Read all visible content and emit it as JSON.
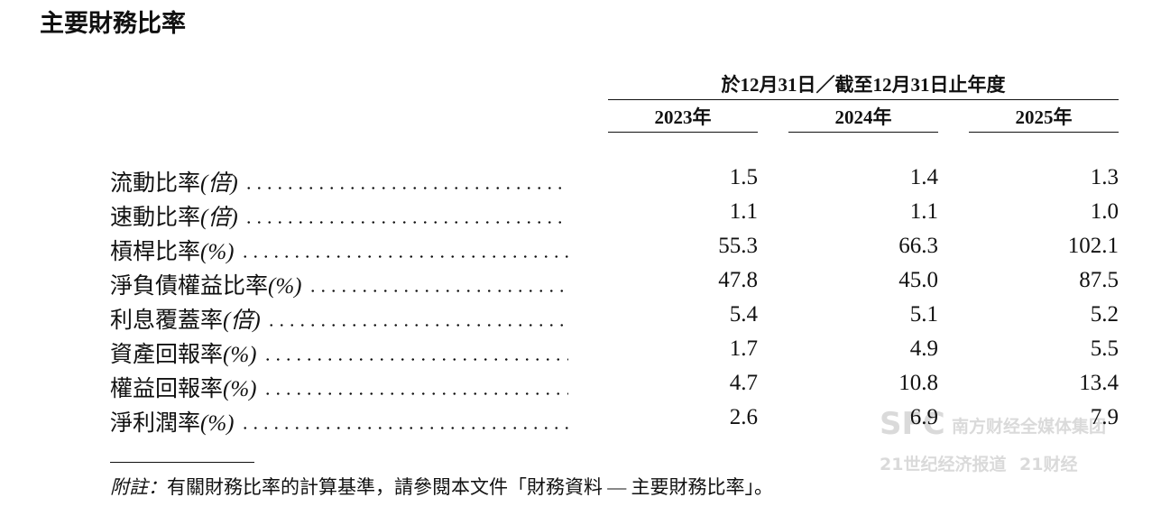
{
  "title": "主要財務比率",
  "header": {
    "period": "於12月31日／截至12月31日止年度",
    "years": [
      "2023年",
      "2024年",
      "2025年"
    ]
  },
  "rows": [
    {
      "name": "流動比率",
      "unit": "(倍)",
      "values": [
        "1.5",
        "1.4",
        "1.3"
      ]
    },
    {
      "name": "速動比率",
      "unit": "(倍)",
      "values": [
        "1.1",
        "1.1",
        "1.0"
      ]
    },
    {
      "name": "槓桿比率",
      "unit": "(%)",
      "values": [
        "55.3",
        "66.3",
        "102.1"
      ]
    },
    {
      "name": "淨負債權益比率",
      "unit": "(%)",
      "values": [
        "47.8",
        "45.0",
        "87.5"
      ]
    },
    {
      "name": "利息覆蓋率",
      "unit": "(倍)",
      "values": [
        "5.4",
        "5.1",
        "5.2"
      ]
    },
    {
      "name": "資產回報率",
      "unit": "(%)",
      "values": [
        "1.7",
        "4.9",
        "5.5"
      ]
    },
    {
      "name": "權益回報率",
      "unit": "(%)",
      "values": [
        "4.7",
        "10.8",
        "13.4"
      ]
    },
    {
      "name": "淨利潤率",
      "unit": "(%)",
      "values": [
        "2.6",
        "6.9",
        "7.9"
      ]
    }
  ],
  "footnote": {
    "label": "附註：",
    "text": "有關財務比率的計算基準，請參閱本文件「財務資料 — 主要財務比率」。"
  },
  "watermark": {
    "brand": "SFC",
    "group": "南方财经全媒体集团",
    "paper": "21世纪经济报道",
    "app": "21财经"
  }
}
